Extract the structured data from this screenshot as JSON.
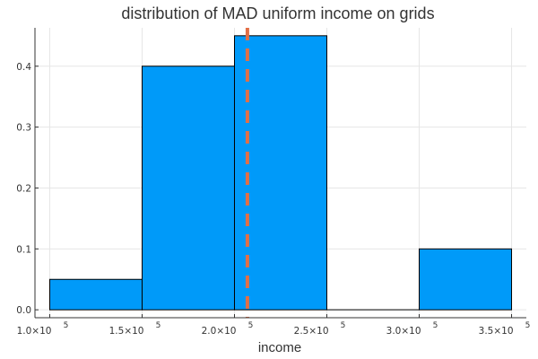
{
  "chart_data": {
    "type": "bar",
    "title": "distribution of MAD uniform income on grids",
    "xlabel": "income",
    "ylabel": "",
    "bins": [
      {
        "start": 100000,
        "end": 150000,
        "value": 0.05
      },
      {
        "start": 150000,
        "end": 200000,
        "value": 0.4
      },
      {
        "start": 200000,
        "end": 250000,
        "value": 0.45
      },
      {
        "start": 250000,
        "end": 300000,
        "value": 0.0
      },
      {
        "start": 300000,
        "end": 350000,
        "value": 0.1
      }
    ],
    "vline": {
      "x": 207000,
      "style": "dashed",
      "color": "#e26f46"
    },
    "bar_color": "#009af9",
    "xlim": [
      92000,
      358000
    ],
    "ylim": [
      -0.013,
      0.463
    ],
    "xticks": [
      100000,
      150000,
      200000,
      250000,
      300000,
      350000
    ],
    "xtick_labels": [
      {
        "mantissa": "1.0×10",
        "exp": "5"
      },
      {
        "mantissa": "1.5×10",
        "exp": "5"
      },
      {
        "mantissa": "2.0×10",
        "exp": "5"
      },
      {
        "mantissa": "2.5×10",
        "exp": "5"
      },
      {
        "mantissa": "3.0×10",
        "exp": "5"
      },
      {
        "mantissa": "3.5×10",
        "exp": "5"
      }
    ],
    "yticks": [
      0.0,
      0.1,
      0.2,
      0.3,
      0.4
    ],
    "ytick_labels": [
      "0.0",
      "0.1",
      "0.2",
      "0.3",
      "0.4"
    ],
    "grid": true,
    "legend": "none"
  }
}
